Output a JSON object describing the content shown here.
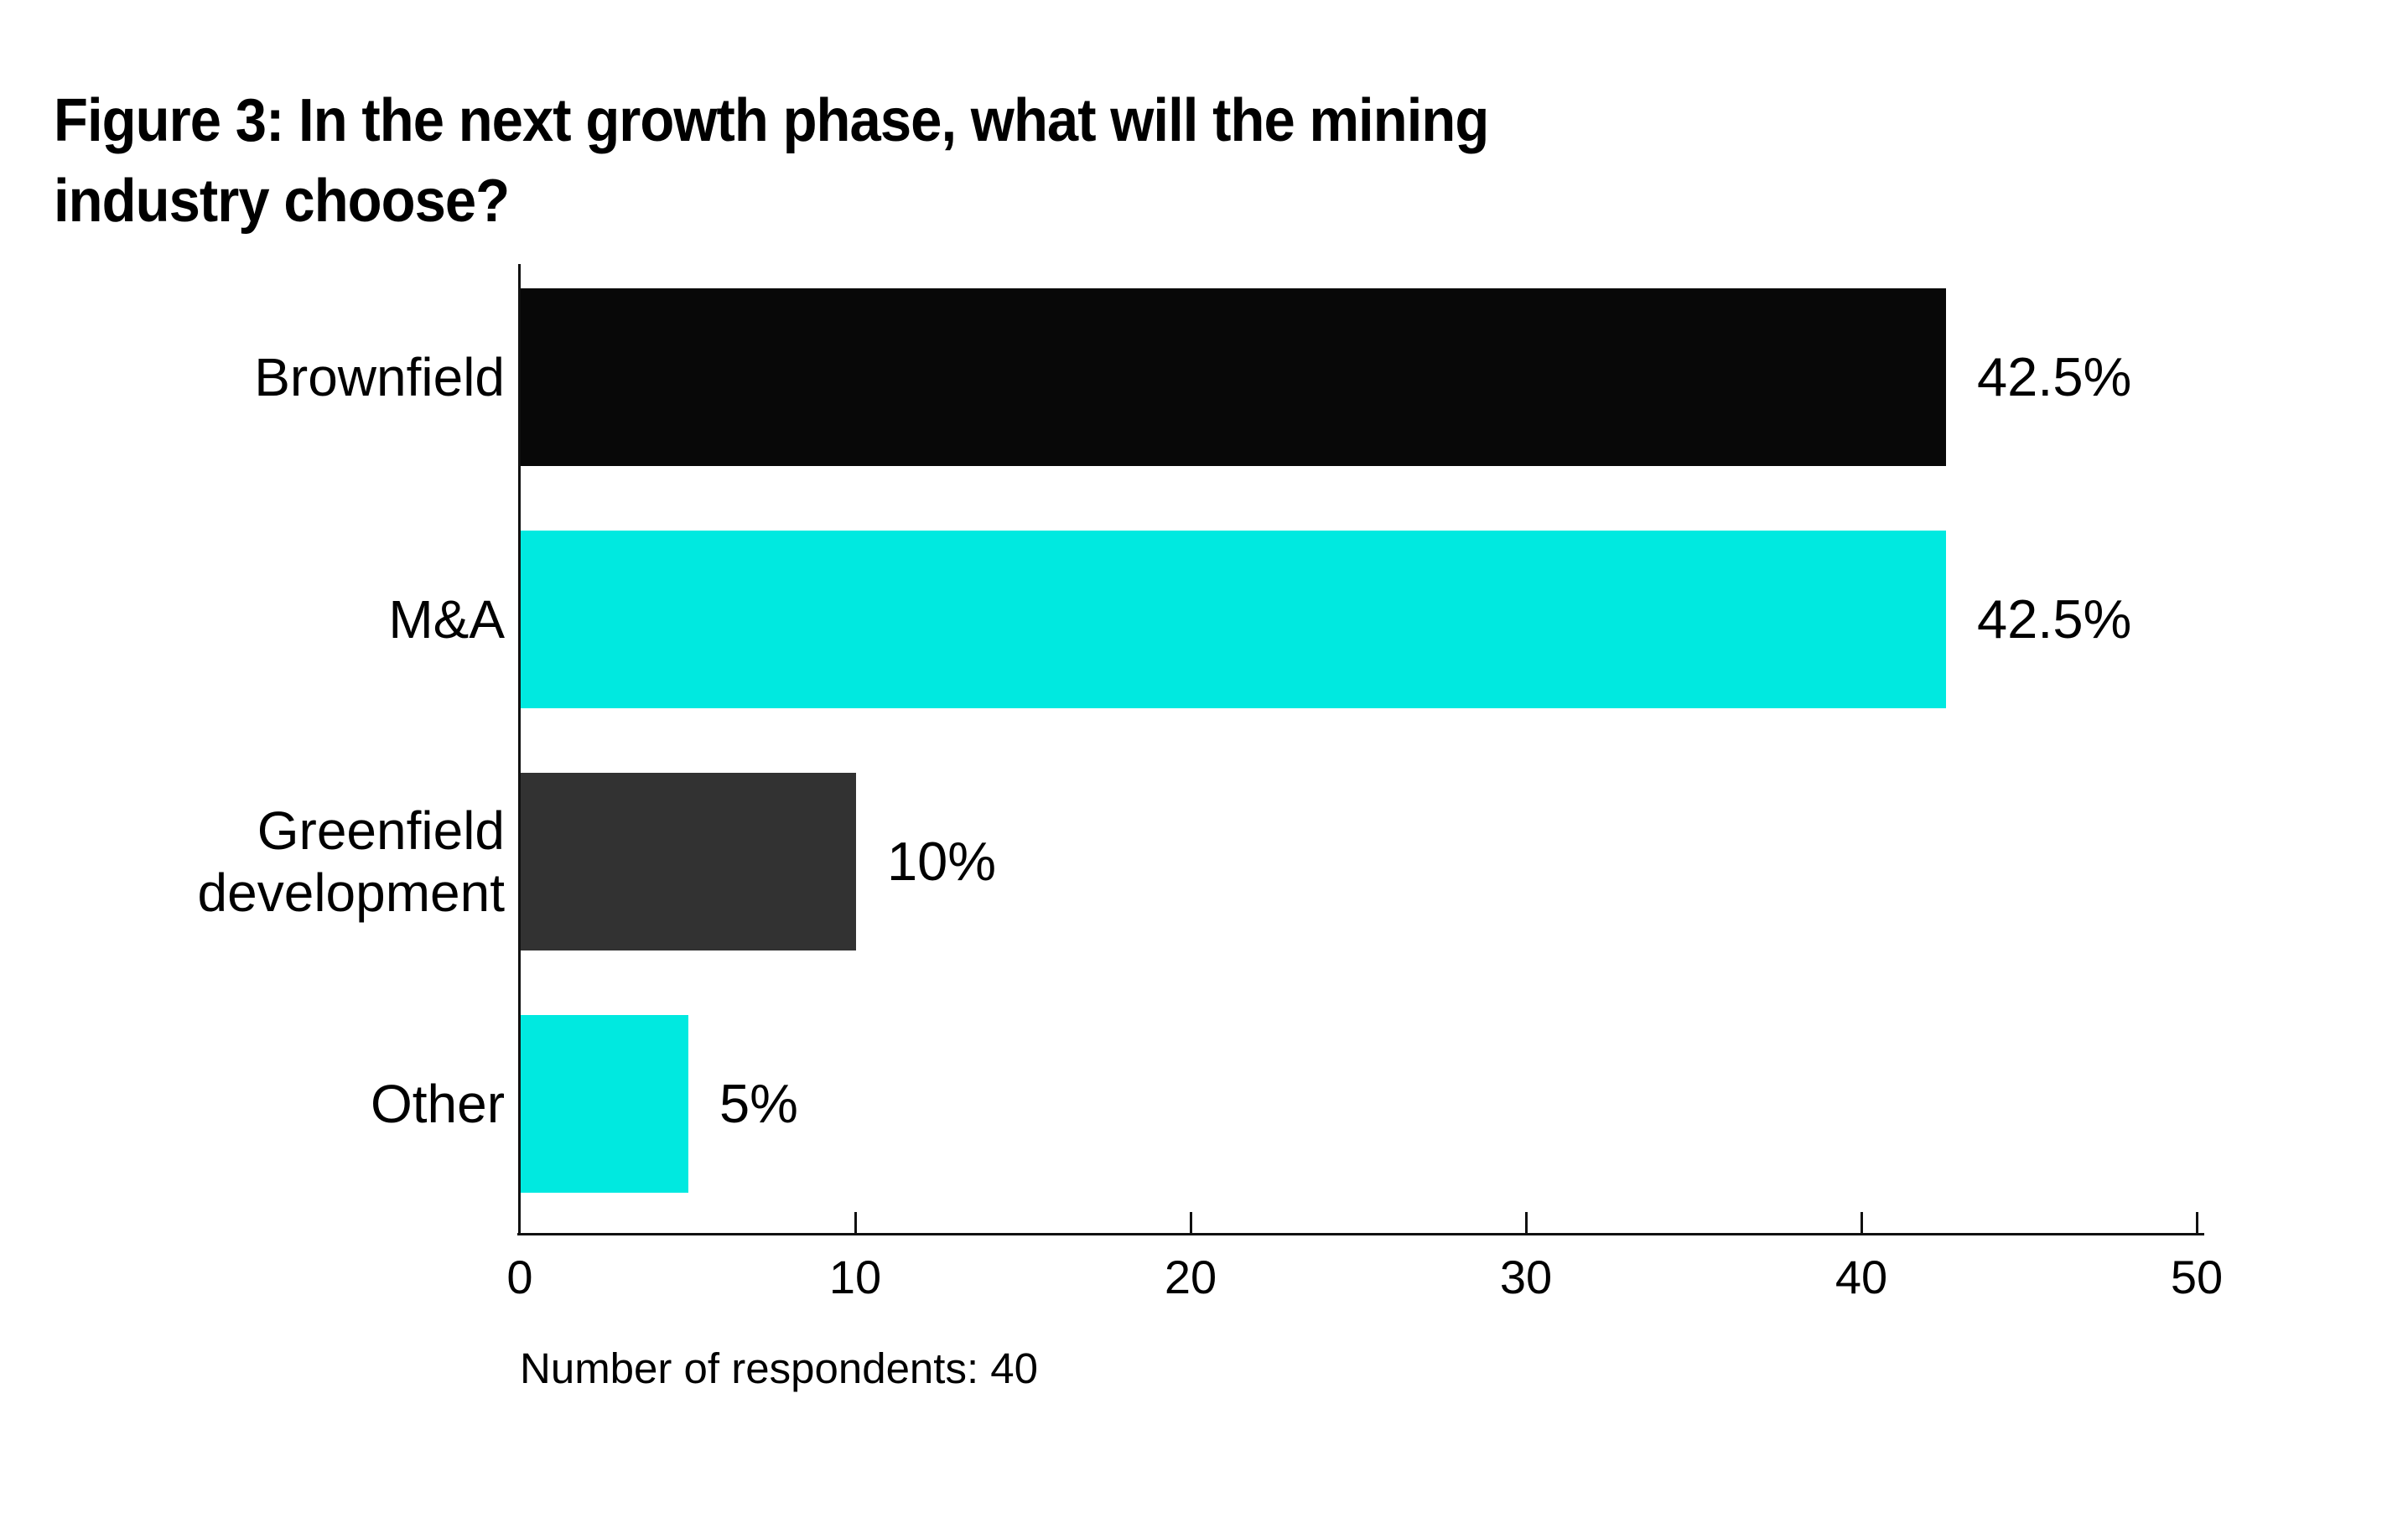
{
  "title": {
    "line1": "Figure 3: In the next growth phase, what will the mining",
    "line2": "industry choose?"
  },
  "footnote": "Number of respondents: 40",
  "colors": {
    "bar_black": "#080808",
    "bar_cyan": "#00e9e0",
    "bar_gray": "#323232",
    "axis": "#111111",
    "text": "#000000",
    "background": "#ffffff"
  },
  "chart_data": {
    "type": "bar",
    "orientation": "horizontal",
    "title": "Figure 3: In the next growth phase, what will the mining industry choose?",
    "categories": [
      "Brownfield",
      "M&A",
      "Greenfield development",
      "Other"
    ],
    "categories_wrapped": [
      [
        "Brownfield"
      ],
      [
        "M&A"
      ],
      [
        "Greenfield",
        "development"
      ],
      [
        "Other"
      ]
    ],
    "values": [
      42.5,
      42.5,
      10,
      5
    ],
    "value_labels": [
      "42.5%",
      "42.5%",
      "10%",
      "5%"
    ],
    "bar_colors": [
      "#080808",
      "#00e9e0",
      "#323232",
      "#00e9e0"
    ],
    "x_ticks": [
      "0",
      "10",
      "20",
      "30",
      "40",
      "50"
    ],
    "x_tick_values": [
      0,
      10,
      20,
      30,
      40,
      50
    ],
    "xlim": [
      0,
      50
    ],
    "xlabel": "",
    "ylabel": "",
    "grid": false,
    "legend": "none",
    "note": "Number of respondents: 40"
  }
}
